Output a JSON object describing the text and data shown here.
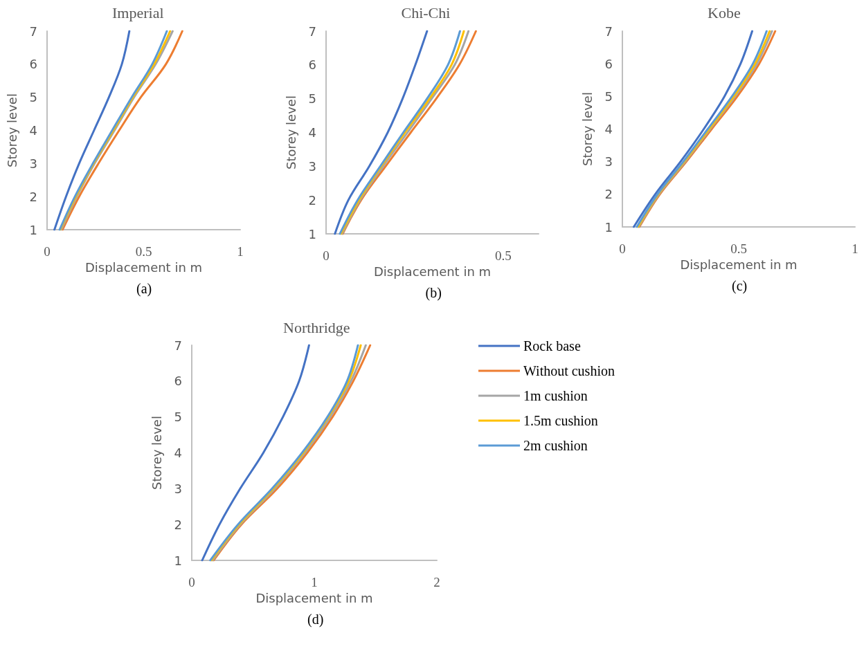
{
  "chart_data": [
    {
      "type": "line",
      "title": "Imperial",
      "xlabel": "Displacement in m",
      "ylabel": "Storey level",
      "annotations": [
        "(a)"
      ],
      "xlim": [
        0,
        1
      ],
      "xticks": [
        0,
        0.5,
        1
      ],
      "ylim": [
        1,
        7
      ],
      "yticks": [
        1,
        2,
        3,
        4,
        5,
        6,
        7
      ],
      "marker": "none",
      "series": [
        {
          "color": "#4472c4",
          "x": [
            0.038,
            0.098,
            0.166,
            0.243,
            0.32,
            0.387,
            0.426
          ],
          "values": [
            1,
            2,
            3,
            4,
            5,
            6,
            7
          ]
        },
        {
          "color": "#ed7d31",
          "x": [
            0.08,
            0.166,
            0.266,
            0.373,
            0.485,
            0.615,
            0.7
          ],
          "values": [
            1,
            2,
            3,
            4,
            5,
            6,
            7
          ]
        },
        {
          "color": "#a5a5a5",
          "x": [
            0.073,
            0.154,
            0.246,
            0.349,
            0.45,
            0.562,
            0.65
          ],
          "values": [
            1,
            2,
            3,
            4,
            5,
            6,
            7
          ]
        },
        {
          "color": "#ffc000",
          "x": [
            0.068,
            0.149,
            0.241,
            0.343,
            0.444,
            0.554,
            0.637
          ],
          "values": [
            1,
            2,
            3,
            4,
            5,
            6,
            7
          ]
        },
        {
          "color": "#5b9bd5",
          "x": [
            0.065,
            0.144,
            0.237,
            0.337,
            0.438,
            0.544,
            0.62
          ],
          "values": [
            1,
            2,
            3,
            4,
            5,
            6,
            7
          ]
        }
      ]
    },
    {
      "type": "line",
      "title": "Chi-Chi",
      "xlabel": "Displacement in m",
      "ylabel": "Storey level",
      "annotations": [
        "(b)"
      ],
      "xlim": [
        0,
        0.6
      ],
      "xticks": [
        0,
        0.5
      ],
      "ylim": [
        1,
        7
      ],
      "yticks": [
        1,
        2,
        3,
        4,
        5,
        6,
        7
      ],
      "marker": "none",
      "series": [
        {
          "color": "#4472c4",
          "x": [
            0.025,
            0.063,
            0.122,
            0.174,
            0.216,
            0.252,
            0.285
          ],
          "values": [
            1,
            2,
            3,
            4,
            5,
            6,
            7
          ]
        },
        {
          "color": "#ed7d31",
          "x": [
            0.047,
            0.099,
            0.168,
            0.239,
            0.311,
            0.376,
            0.423
          ],
          "values": [
            1,
            2,
            3,
            4,
            5,
            6,
            7
          ]
        },
        {
          "color": "#a5a5a5",
          "x": [
            0.045,
            0.096,
            0.161,
            0.23,
            0.298,
            0.363,
            0.402
          ],
          "values": [
            1,
            2,
            3,
            4,
            5,
            6,
            7
          ]
        },
        {
          "color": "#ffc000",
          "x": [
            0.042,
            0.093,
            0.156,
            0.223,
            0.292,
            0.354,
            0.389
          ],
          "values": [
            1,
            2,
            3,
            4,
            5,
            6,
            7
          ]
        },
        {
          "color": "#5b9bd5",
          "x": [
            0.039,
            0.089,
            0.153,
            0.218,
            0.285,
            0.344,
            0.378
          ],
          "values": [
            1,
            2,
            3,
            4,
            5,
            6,
            7
          ]
        }
      ]
    },
    {
      "type": "line",
      "title": "Kobe",
      "xlabel": "Displacement in m",
      "ylabel": "Storey level",
      "annotations": [
        "(c)"
      ],
      "xlim": [
        0,
        1
      ],
      "xticks": [
        0,
        0.5,
        1
      ],
      "ylim": [
        1,
        7
      ],
      "yticks": [
        1,
        2,
        3,
        4,
        5,
        6,
        7
      ],
      "marker": "none",
      "series": [
        {
          "color": "#4472c4",
          "x": [
            0.049,
            0.141,
            0.25,
            0.35,
            0.439,
            0.508,
            0.558
          ],
          "values": [
            1,
            2,
            3,
            4,
            5,
            6,
            7
          ]
        },
        {
          "color": "#ed7d31",
          "x": [
            0.073,
            0.161,
            0.275,
            0.384,
            0.494,
            0.588,
            0.657
          ],
          "values": [
            1,
            2,
            3,
            4,
            5,
            6,
            7
          ]
        },
        {
          "color": "#a5a5a5",
          "x": [
            0.07,
            0.157,
            0.27,
            0.377,
            0.484,
            0.578,
            0.643
          ],
          "values": [
            1,
            2,
            3,
            4,
            5,
            6,
            7
          ]
        },
        {
          "color": "#ffc000",
          "x": [
            0.067,
            0.154,
            0.266,
            0.373,
            0.479,
            0.57,
            0.633
          ],
          "values": [
            1,
            2,
            3,
            4,
            5,
            6,
            7
          ]
        },
        {
          "color": "#5b9bd5",
          "x": [
            0.062,
            0.151,
            0.262,
            0.367,
            0.471,
            0.561,
            0.62
          ],
          "values": [
            1,
            2,
            3,
            4,
            5,
            6,
            7
          ]
        }
      ]
    },
    {
      "type": "line",
      "title": "Northridge",
      "xlabel": "Displacement in m",
      "ylabel": "Storey level",
      "annotations": [
        "(d)"
      ],
      "xlim": [
        0,
        2
      ],
      "xticks": [
        0,
        1,
        2
      ],
      "ylim": [
        1,
        7
      ],
      "yticks": [
        1,
        2,
        3,
        4,
        5,
        6,
        7
      ],
      "marker": "none",
      "legend": "right",
      "series": [
        {
          "name": "Rock base",
          "color": "#4472c4",
          "x": [
            0.085,
            0.226,
            0.395,
            0.584,
            0.744,
            0.876,
            0.957
          ],
          "values": [
            1,
            2,
            3,
            4,
            5,
            6,
            7
          ]
        },
        {
          "name": "Without cushion",
          "color": "#ed7d31",
          "x": [
            0.179,
            0.405,
            0.697,
            0.942,
            1.149,
            1.318,
            1.456
          ],
          "values": [
            1,
            2,
            3,
            4,
            5,
            6,
            7
          ]
        },
        {
          "name": "1m cushion",
          "color": "#a5a5a5",
          "x": [
            0.17,
            0.395,
            0.678,
            0.923,
            1.13,
            1.299,
            1.42
          ],
          "values": [
            1,
            2,
            3,
            4,
            5,
            6,
            7
          ]
        },
        {
          "name": "1.5m cushion",
          "color": "#ffc000",
          "x": [
            0.16,
            0.386,
            0.665,
            0.91,
            1.115,
            1.281,
            1.379
          ],
          "values": [
            1,
            2,
            3,
            4,
            5,
            6,
            7
          ]
        },
        {
          "name": "2m cushion",
          "color": "#5b9bd5",
          "x": [
            0.151,
            0.377,
            0.655,
            0.9,
            1.107,
            1.267,
            1.356
          ],
          "values": [
            1,
            2,
            3,
            4,
            5,
            6,
            7
          ]
        }
      ]
    }
  ]
}
